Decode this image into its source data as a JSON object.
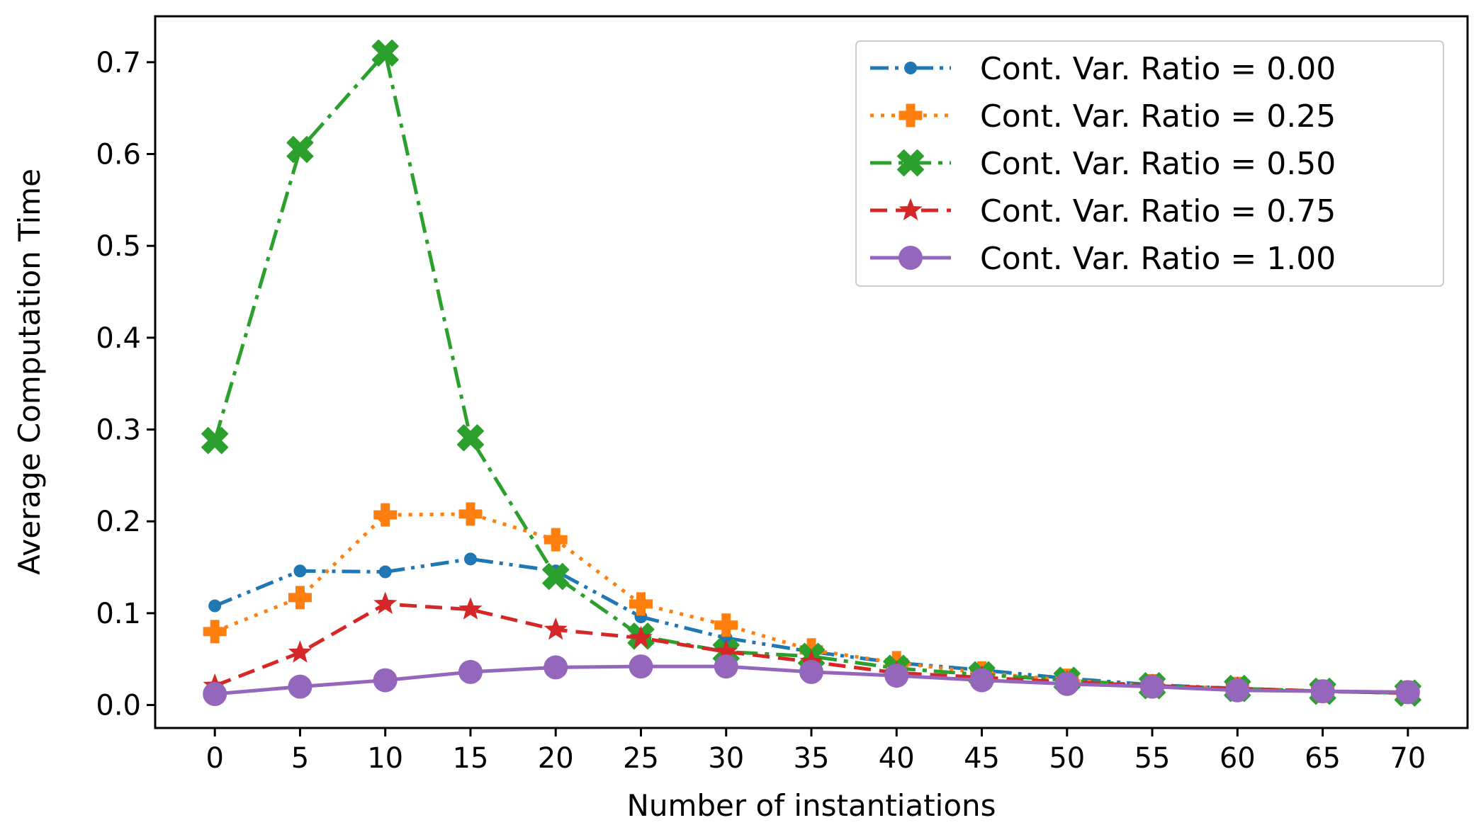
{
  "chart_data": {
    "type": "line",
    "title": "",
    "xlabel": "Number of instantiations",
    "ylabel": "Average Computation Time",
    "x": [
      0,
      5,
      10,
      15,
      20,
      25,
      30,
      35,
      40,
      45,
      50,
      55,
      60,
      65,
      70
    ],
    "xticks": [
      "0",
      "5",
      "10",
      "15",
      "20",
      "25",
      "30",
      "35",
      "40",
      "45",
      "50",
      "55",
      "60",
      "65",
      "70"
    ],
    "yticks": [
      "0.0",
      "0.1",
      "0.2",
      "0.3",
      "0.4",
      "0.5",
      "0.6",
      "0.7"
    ],
    "xlim": [
      -3.5,
      73.5
    ],
    "ylim": [
      -0.025,
      0.75
    ],
    "grid": false,
    "legend_position": "top-right",
    "series": [
      {
        "name": "Cont. Var. Ratio = 0.00",
        "color": "#1f77b4",
        "linestyle": "dashdotdot",
        "marker": "dot",
        "values": [
          0.108,
          0.146,
          0.145,
          0.159,
          0.146,
          0.096,
          0.073,
          0.058,
          0.046,
          0.038,
          0.029,
          0.022,
          0.018,
          0.015,
          0.013
        ]
      },
      {
        "name": "Cont. Var. Ratio = 0.25",
        "color": "#ff7f0e",
        "linestyle": "dotted",
        "marker": "plus",
        "values": [
          0.08,
          0.117,
          0.207,
          0.208,
          0.18,
          0.11,
          0.087,
          0.06,
          0.046,
          0.035,
          0.027,
          0.021,
          0.018,
          0.015,
          0.014
        ]
      },
      {
        "name": "Cont. Var. Ratio = 0.50",
        "color": "#2ca02c",
        "linestyle": "dashdot",
        "marker": "x",
        "values": [
          0.288,
          0.605,
          0.71,
          0.291,
          0.14,
          0.075,
          0.058,
          0.053,
          0.04,
          0.033,
          0.027,
          0.021,
          0.018,
          0.015,
          0.013
        ]
      },
      {
        "name": "Cont. Var. Ratio = 0.75",
        "color": "#d62728",
        "linestyle": "dashed",
        "marker": "star",
        "values": [
          0.021,
          0.057,
          0.11,
          0.104,
          0.082,
          0.073,
          0.058,
          0.047,
          0.035,
          0.03,
          0.025,
          0.021,
          0.018,
          0.015,
          0.013
        ]
      },
      {
        "name": "Cont. Var. Ratio = 1.00",
        "color": "#9467bd",
        "linestyle": "solid",
        "marker": "circle",
        "values": [
          0.012,
          0.02,
          0.027,
          0.036,
          0.041,
          0.042,
          0.042,
          0.036,
          0.032,
          0.027,
          0.023,
          0.02,
          0.016,
          0.015,
          0.014
        ]
      }
    ]
  }
}
